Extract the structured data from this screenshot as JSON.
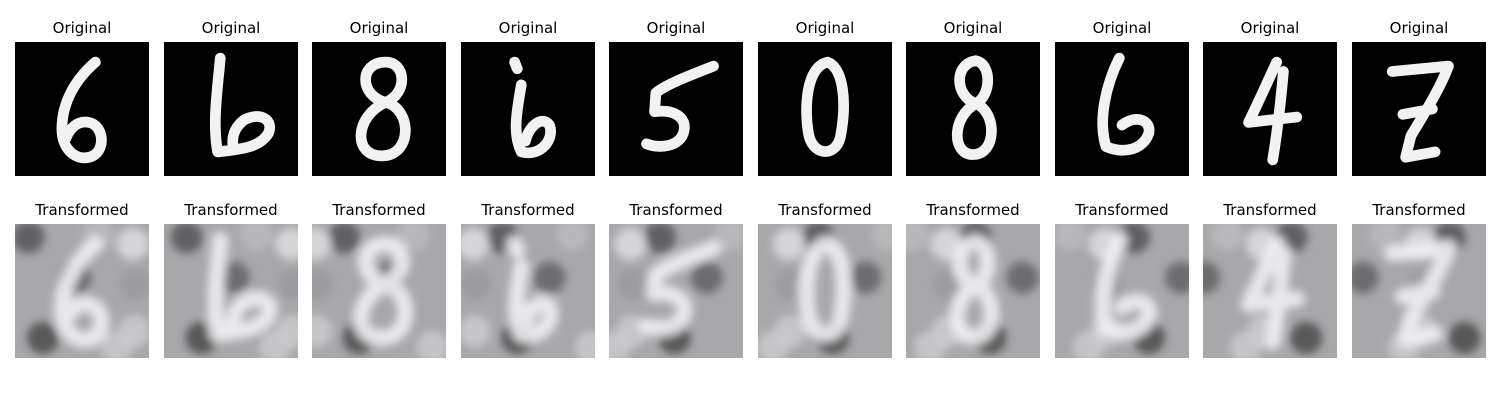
{
  "figure": {
    "original_label": "Original",
    "transformed_label": "Transformed"
  },
  "samples": [
    {
      "digit": "6"
    },
    {
      "digit": "6"
    },
    {
      "digit": "8"
    },
    {
      "digit": "6"
    },
    {
      "digit": "5"
    },
    {
      "digit": "0"
    },
    {
      "digit": "8"
    },
    {
      "digit": "6"
    },
    {
      "digit": "4"
    },
    {
      "digit": "7"
    }
  ]
}
